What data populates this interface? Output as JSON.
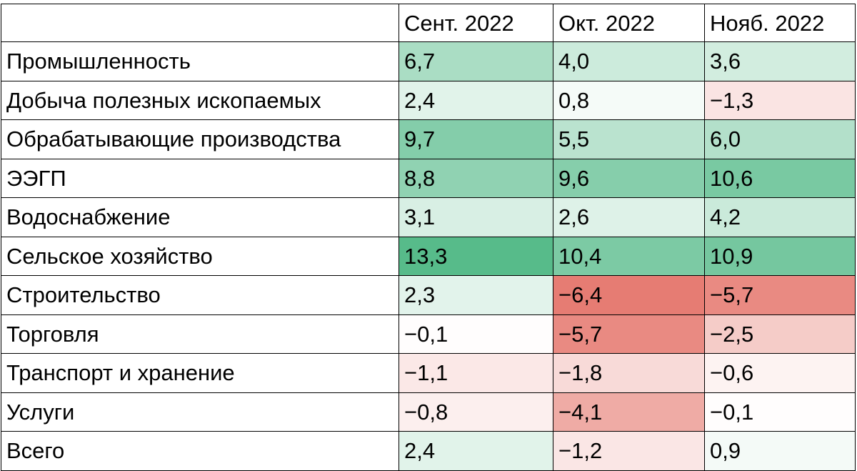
{
  "chart_data": {
    "type": "heatmap",
    "title": "",
    "columns": [
      "Сент. 2022",
      "Окт. 2022",
      "Нояб. 2022"
    ],
    "rows": [
      {
        "label": "Промышленность",
        "values": [
          6.7,
          4.0,
          3.6
        ],
        "display": [
          "6,7",
          "4,0",
          "3,6"
        ]
      },
      {
        "label": "Добыча полезных ископаемых",
        "values": [
          2.4,
          0.8,
          -1.3
        ],
        "display": [
          "2,4",
          "0,8",
          "−1,3"
        ]
      },
      {
        "label": "Обрабатывающие производства",
        "values": [
          9.7,
          5.5,
          6.0
        ],
        "display": [
          "9,7",
          "5,5",
          "6,0"
        ]
      },
      {
        "label": "ЭЭГП",
        "values": [
          8.8,
          9.6,
          10.6
        ],
        "display": [
          "8,8",
          "9,6",
          "10,6"
        ]
      },
      {
        "label": "Водоснабжение",
        "values": [
          3.1,
          2.6,
          4.2
        ],
        "display": [
          "3,1",
          "2,6",
          "4,2"
        ]
      },
      {
        "label": "Сельское хозяйство",
        "values": [
          13.3,
          10.4,
          10.9
        ],
        "display": [
          "13,3",
          "10,4",
          "10,9"
        ]
      },
      {
        "label": "Строительство",
        "values": [
          2.3,
          -6.4,
          -5.7
        ],
        "display": [
          "2,3",
          "−6,4",
          "−5,7"
        ]
      },
      {
        "label": "Торговля",
        "values": [
          -0.1,
          -5.7,
          -2.5
        ],
        "display": [
          "−0,1",
          "−5,7",
          "−2,5"
        ]
      },
      {
        "label": "Транспорт и хранение",
        "values": [
          -1.1,
          -1.8,
          -0.6
        ],
        "display": [
          "−1,1",
          "−1,8",
          "−0,6"
        ]
      },
      {
        "label": "Услуги",
        "values": [
          -0.8,
          -4.1,
          -0.1
        ],
        "display": [
          "−0,8",
          "−4,1",
          "−0,1"
        ]
      },
      {
        "label": "Всего",
        "values": [
          2.4,
          -1.2,
          0.9
        ],
        "display": [
          "2,4",
          "−1,2",
          "0,9"
        ]
      }
    ],
    "color_scale": {
      "positive": "#57bb8a",
      "neutral": "#ffffff",
      "negative": "#e67c73",
      "max_value": 13.3,
      "min_value": -6.4
    }
  }
}
